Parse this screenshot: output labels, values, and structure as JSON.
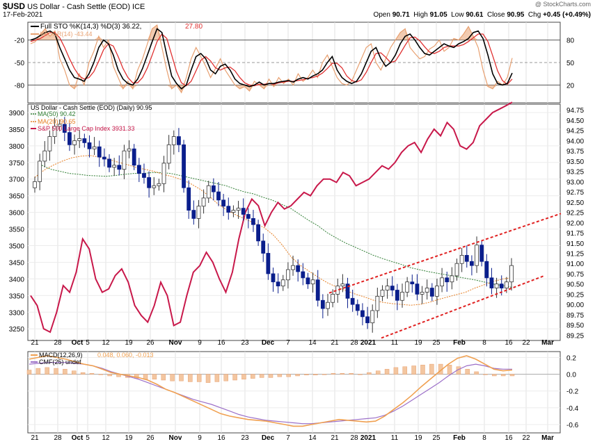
{
  "header": {
    "symbol": "$USD",
    "name": "US Dollar - Cash Settle (EOD) ICE",
    "date": "17-Feb-2021",
    "watermark": "@ StockCharts.com",
    "open_label": "Open",
    "open": "90.71",
    "high_label": "High",
    "high": "91.05",
    "low_label": "Low",
    "low": "90.61",
    "close_label": "Close",
    "close": "90.95",
    "chg_label": "Chg",
    "chg": "+0.45 (+0.49%)"
  },
  "colors": {
    "candle_down": "#0a1e8c",
    "price_line": "#c8184a",
    "ma50": "#2e7d32",
    "ma20": "#e67e22",
    "channel": "#e02020",
    "sto_k": "#000000",
    "sto_d": "#e03030",
    "willr": "#e8a070",
    "macd": "#f0a050",
    "cmf": "#9b6fc8"
  },
  "chart_data": [
    {
      "type": "line",
      "title": "Full STO %K(14,3) %D(3) 36.22, 27.80",
      "legend": [
        {
          "label": "Full STO %K(14,3) %D(3) 36.22, ",
          "value": "27.80"
        },
        {
          "label": "Wm%R(14) -43.44"
        }
      ],
      "left_ticks": [
        "-20",
        "-50",
        "-80"
      ],
      "right_ticks": [
        "80",
        "50",
        "20"
      ],
      "ylim": [
        0,
        100
      ],
      "series": [
        {
          "name": "%K",
          "values": [
            80,
            82,
            86,
            90,
            92,
            88,
            70,
            55,
            40,
            30,
            28,
            25,
            35,
            50,
            70,
            80,
            75,
            60,
            40,
            28,
            22,
            20,
            28,
            42,
            60,
            78,
            95,
            90,
            60,
            32,
            22,
            15,
            20,
            40,
            58,
            62,
            55,
            40,
            35,
            45,
            48,
            40,
            28,
            22,
            20,
            18,
            20,
            24,
            20,
            22,
            22,
            24,
            25,
            26,
            24,
            28,
            30,
            28,
            32,
            35,
            40,
            50,
            58,
            40,
            30,
            25,
            22,
            25,
            35,
            50,
            65,
            70,
            55,
            45,
            50,
            60,
            75,
            85,
            88,
            80,
            70,
            62,
            60,
            65,
            70,
            75,
            72,
            70,
            75,
            78,
            82,
            90,
            92,
            82,
            60,
            35,
            22,
            20,
            22,
            36
          ]
        },
        {
          "name": "%D",
          "values": [
            78,
            80,
            82,
            86,
            90,
            90,
            83,
            70,
            55,
            42,
            32,
            28,
            30,
            38,
            52,
            67,
            75,
            72,
            58,
            42,
            30,
            23,
            23,
            30,
            43,
            60,
            78,
            88,
            82,
            60,
            38,
            23,
            19,
            25,
            39,
            53,
            58,
            52,
            43,
            40,
            43,
            44,
            39,
            30,
            23,
            20,
            19,
            21,
            21,
            22,
            21,
            23,
            24,
            25,
            25,
            26,
            27,
            29,
            30,
            32,
            36,
            42,
            49,
            49,
            43,
            32,
            26,
            24,
            27,
            37,
            50,
            62,
            63,
            57,
            50,
            52,
            62,
            73,
            83,
            84,
            79,
            71,
            64,
            62,
            65,
            70,
            72,
            72,
            72,
            74,
            78,
            83,
            88,
            88,
            78,
            59,
            39,
            26,
            21,
            28
          ]
        },
        {
          "name": "Wm%R",
          "values": [
            75,
            78,
            88,
            95,
            85,
            92,
            55,
            40,
            20,
            15,
            35,
            20,
            50,
            65,
            85,
            70,
            80,
            45,
            30,
            15,
            25,
            15,
            40,
            55,
            75,
            95,
            100,
            70,
            40,
            15,
            20,
            10,
            30,
            55,
            70,
            58,
            45,
            30,
            42,
            55,
            40,
            30,
            20,
            15,
            18,
            12,
            25,
            20,
            15,
            28,
            18,
            30,
            22,
            28,
            20,
            35,
            25,
            30,
            40,
            30,
            50,
            60,
            45,
            30,
            22,
            20,
            25,
            40,
            55,
            70,
            75,
            50,
            40,
            55,
            70,
            80,
            90,
            95,
            70,
            62,
            55,
            58,
            68,
            72,
            80,
            65,
            70,
            82,
            80,
            88,
            98,
            85,
            70,
            40,
            18,
            15,
            25,
            20,
            30,
            56
          ]
        }
      ]
    },
    {
      "type": "candlestick",
      "title": "US Dollar - Cash Settle (EOD) (Daily) 90.95",
      "legend": [
        {
          "label": "MA(50) 90.42"
        },
        {
          "label": "MA(20) 90.65"
        },
        {
          "label": "S&P 500 Large Cap Index 3931.33"
        }
      ],
      "left_ticks": [
        "3900",
        "3850",
        "3800",
        "3750",
        "3700",
        "3650",
        "3600",
        "3550",
        "3500",
        "3450",
        "3400",
        "3350",
        "3300",
        "3250"
      ],
      "right_ticks": [
        "94.75",
        "94.50",
        "94.25",
        "94.00",
        "93.75",
        "93.50",
        "93.25",
        "93.00",
        "92.75",
        "92.50",
        "92.25",
        "92.00",
        "91.75",
        "91.50",
        "91.25",
        "91.00",
        "90.75",
        "90.50",
        "90.25",
        "90.00",
        "89.75",
        "89.50",
        "89.25"
      ],
      "x_ticks": [
        "21",
        "28",
        "Oct",
        "5",
        "12",
        "19",
        "26",
        "Nov",
        "9",
        "16",
        "23",
        "Dec",
        "7",
        "14",
        "21",
        "28",
        "2021",
        "11",
        "19",
        "25",
        "Feb",
        "8",
        "16",
        "22",
        "Mar"
      ],
      "ylim_left": [
        3215,
        3925
      ],
      "ylim_right": [
        89.12,
        94.89
      ],
      "series": [
        {
          "name": "US Dollar close",
          "values": [
            93.0,
            93.5,
            93.75,
            94.1,
            94.35,
            94.4,
            94.2,
            93.9,
            94.0,
            94.05,
            93.95,
            93.8,
            93.85,
            93.6,
            93.55,
            93.35,
            93.4,
            93.3,
            93.75,
            93.8,
            93.4,
            93.2,
            93.1,
            92.85,
            92.9,
            92.95,
            93.45,
            93.9,
            94.1,
            93.9,
            92.85,
            92.3,
            92.1,
            92.4,
            92.6,
            92.9,
            92.75,
            92.55,
            92.4,
            92.25,
            92.3,
            92.35,
            92.2,
            92.1,
            91.95,
            91.55,
            91.25,
            90.75,
            90.55,
            90.45,
            90.6,
            90.85,
            90.95,
            90.8,
            90.65,
            90.5,
            90.6,
            90.1,
            89.9,
            90.05,
            90.25,
            90.45,
            90.5,
            90.15,
            90.0,
            89.85,
            89.7,
            89.55,
            89.85,
            90.2,
            90.35,
            90.45,
            90.35,
            90.1,
            90.3,
            90.55,
            90.5,
            90.25,
            90.3,
            90.4,
            90.2,
            90.45,
            90.65,
            90.55,
            90.7,
            91.0,
            91.2,
            91.05,
            90.95,
            91.45,
            91.05,
            90.65,
            90.4,
            90.5,
            90.4,
            90.55,
            90.95
          ]
        },
        {
          "name": "MA(50)",
          "values": [
            93.4,
            93.3,
            93.25,
            93.2,
            93.18,
            93.15,
            93.14,
            93.13,
            93.15,
            93.18,
            93.2,
            93.2,
            93.22,
            93.22,
            93.2,
            93.15,
            93.1,
            93.05,
            93.0,
            92.95,
            92.9,
            92.82,
            92.75,
            92.7,
            92.62,
            92.55,
            92.45,
            92.35,
            92.2,
            92.05,
            91.92,
            91.75,
            91.62,
            91.5,
            91.4,
            91.3,
            91.2,
            91.12,
            91.05,
            90.98,
            90.9,
            90.85,
            90.8,
            90.76,
            90.72,
            90.68,
            90.64,
            90.6,
            90.55,
            90.5,
            90.46,
            90.42
          ]
        },
        {
          "name": "MA(20)",
          "values": [
            93.1,
            93.28,
            93.4,
            93.5,
            93.58,
            93.62,
            93.64,
            93.6,
            93.55,
            93.48,
            93.42,
            93.35,
            93.3,
            93.25,
            93.18,
            93.12,
            93.05,
            92.95,
            92.82,
            92.65,
            92.45,
            92.3,
            92.18,
            92.08,
            91.98,
            91.88,
            91.7,
            91.45,
            91.15,
            90.95,
            90.8,
            90.65,
            90.52,
            90.42,
            90.33,
            90.25,
            90.18,
            90.1,
            90.05,
            90.02,
            90.0,
            89.98,
            90.0,
            90.05,
            90.12,
            90.18,
            90.24,
            90.3,
            90.4,
            90.48,
            90.56,
            90.62,
            90.65
          ]
        },
        {
          "name": "S&P 500 Large Cap Index",
          "values": [
            3350,
            3320,
            3250,
            3240,
            3300,
            3380,
            3360,
            3420,
            3520,
            3490,
            3400,
            3360,
            3370,
            3410,
            3430,
            3390,
            3320,
            3290,
            3270,
            3320,
            3390,
            3350,
            3260,
            3270,
            3350,
            3420,
            3440,
            3480,
            3450,
            3400,
            3360,
            3420,
            3520,
            3600,
            3640,
            3620,
            3560,
            3600,
            3630,
            3610,
            3620,
            3640,
            3660,
            3650,
            3680,
            3700,
            3700,
            3690,
            3720,
            3710,
            3680,
            3690,
            3700,
            3720,
            3740,
            3730,
            3750,
            3780,
            3800,
            3810,
            3780,
            3820,
            3850,
            3830,
            3870,
            3850,
            3800,
            3790,
            3810,
            3860,
            3880,
            3900,
            3910,
            3920,
            3931
          ]
        },
        {
          "name": "Channel upper",
          "x": [
            "Dec 18",
            "Mar 1"
          ],
          "values": [
            90.28,
            92.22
          ]
        },
        {
          "name": "Channel lower",
          "x": [
            "Jan 5",
            "Feb 26"
          ],
          "values": [
            89.18,
            90.7
          ]
        }
      ]
    },
    {
      "type": "bar",
      "title": "MACD(12,26,9) 0.048, 0.060, -0.013",
      "legend": [
        {
          "label": "MACD(12,26,9) ",
          "value": "0.048, 0.060, -0.013"
        },
        {
          "label": "CMF(25) undef"
        }
      ],
      "right_ticks": [
        "0.2",
        "0.0",
        "-0.2",
        "-0.4",
        "-0.6"
      ],
      "ylim": [
        -0.7,
        0.27
      ],
      "series": [
        {
          "name": "MACD",
          "values": [
            0.18,
            0.2,
            0.22,
            0.2,
            0.18,
            0.15,
            0.12,
            0.1,
            0.06,
            0.02,
            0.0,
            -0.02,
            -0.04,
            -0.07,
            -0.12,
            -0.18,
            -0.22,
            -0.27,
            -0.32,
            -0.37,
            -0.42,
            -0.47,
            -0.5,
            -0.52,
            -0.54,
            -0.55,
            -0.56,
            -0.58,
            -0.6,
            -0.62,
            -0.62,
            -0.6,
            -0.58,
            -0.56,
            -0.54,
            -0.55,
            -0.56,
            -0.57,
            -0.56,
            -0.5,
            -0.42,
            -0.34,
            -0.25,
            -0.15,
            -0.06,
            0.03,
            0.12,
            0.19,
            0.22,
            0.18,
            0.12,
            0.06,
            0.04,
            0.05
          ]
        },
        {
          "name": "Signal",
          "values": [
            0.12,
            0.13,
            0.14,
            0.14,
            0.14,
            0.13,
            0.12,
            0.1,
            0.07,
            0.03,
            0.0,
            -0.03,
            -0.06,
            -0.1,
            -0.14,
            -0.18,
            -0.22,
            -0.26,
            -0.3,
            -0.33,
            -0.36,
            -0.4,
            -0.44,
            -0.48,
            -0.51,
            -0.53,
            -0.55,
            -0.56,
            -0.57,
            -0.58,
            -0.59,
            -0.59,
            -0.58,
            -0.57,
            -0.56,
            -0.55,
            -0.54,
            -0.53,
            -0.52,
            -0.49,
            -0.44,
            -0.38,
            -0.31,
            -0.24,
            -0.17,
            -0.1,
            -0.02,
            0.05,
            0.1,
            0.12,
            0.1,
            0.07,
            0.06,
            0.06
          ]
        },
        {
          "name": "Histogram",
          "values": [
            0.05,
            0.07,
            0.08,
            0.07,
            0.06,
            0.04,
            0.02,
            0.01,
            0.0,
            -0.02,
            -0.03,
            -0.04,
            -0.05,
            -0.06,
            -0.06,
            -0.07,
            -0.08,
            -0.08,
            -0.09,
            -0.09,
            -0.1,
            -0.09,
            -0.08,
            -0.07,
            -0.06,
            -0.05,
            -0.04,
            -0.04,
            -0.03,
            -0.03,
            -0.02,
            -0.01,
            -0.01,
            0.0,
            0.01,
            0.01,
            0.01,
            0.0,
            0.02,
            0.04,
            0.06,
            0.08,
            0.09,
            0.1,
            0.11,
            0.12,
            0.12,
            0.11,
            0.09,
            0.06,
            0.03,
            0.0,
            -0.02,
            -0.02,
            -0.02
          ]
        }
      ]
    }
  ]
}
